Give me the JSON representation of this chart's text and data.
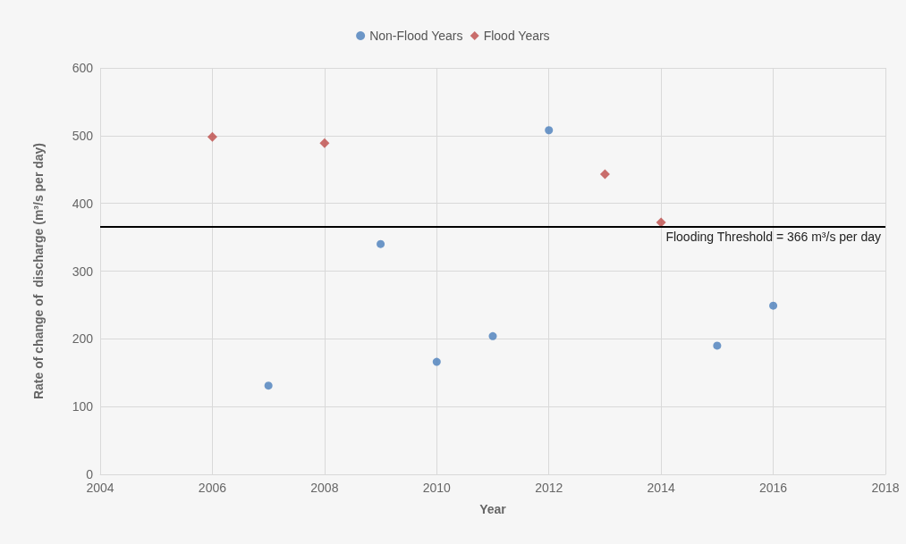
{
  "chart_data": {
    "type": "scatter",
    "xlabel": "Year",
    "ylabel": "Rate of change of  discharge (m³/s per day)",
    "xlim": [
      2004,
      2018
    ],
    "xticks": [
      2004,
      2006,
      2008,
      2010,
      2012,
      2014,
      2016,
      2018
    ],
    "ylim": [
      0,
      600
    ],
    "yticks": [
      0,
      100,
      200,
      300,
      400,
      500,
      600
    ],
    "series": [
      {
        "name": "Non-Flood Years",
        "color": "#4a7ebb",
        "marker": "circle",
        "x": [
          2007,
          2009,
          2010,
          2011,
          2012,
          2015,
          2016
        ],
        "values": [
          131,
          340,
          166,
          204,
          508,
          190,
          249
        ]
      },
      {
        "name": "Flood Years",
        "color": "#be4b48",
        "marker": "diamond",
        "x": [
          2006,
          2008,
          2013,
          2014
        ],
        "values": [
          498,
          489,
          443,
          372
        ]
      }
    ],
    "ref_lines": [
      {
        "axis": "y",
        "value": 366,
        "label": "Flooding Threshold = 366 m³/s per day",
        "color": "#000000",
        "line_style": "solid"
      }
    ],
    "grid": true,
    "legend": "top"
  }
}
